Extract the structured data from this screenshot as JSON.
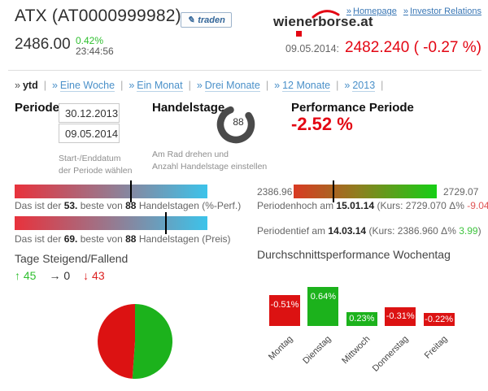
{
  "colors": {
    "brand_red": "#e30613",
    "green": "#2fbf2f",
    "bar_red": "#dc1212",
    "bar_green": "#1cb21c",
    "link_blue": "#4a90c9"
  },
  "icons": {
    "bullet": "»",
    "pen": "✎",
    "arrow_up": "↑",
    "arrow_right": "→",
    "arrow_down": "↓"
  },
  "header": {
    "title": "ATX (AT0000999982)",
    "traden_label": "traden",
    "logo_wiener": "wiener",
    "logo_borse": "borse.at",
    "links": [
      {
        "label": "Homepage"
      },
      {
        "label": "Investor Relations"
      }
    ],
    "price": "2486.00",
    "change_pct": "0.42%",
    "change_time": "23:44:56",
    "quote_date": "09.05.2014:",
    "quote_value": "2482.240 ( -0.27 %)"
  },
  "nav": {
    "separator": "|",
    "items": [
      "ytd",
      "Eine Woche",
      "Ein Monat",
      "Drei Monate",
      "12 Monate",
      "2013"
    ],
    "active": "ytd"
  },
  "periode": {
    "label": "Periode",
    "start_date": "30.12.2013",
    "end_date": "09.05.2014",
    "hint_line1": "Start-/Enddatum",
    "hint_line2": "der Periode wählen"
  },
  "handelstage": {
    "label": "Handelstage",
    "value": "88",
    "hint_line1": "Am Rad drehen und",
    "hint_line2": "Anzahl Handelstage einstellen"
  },
  "performance": {
    "label": "Performance Periode",
    "value": "-2.52 %"
  },
  "rank_bars": [
    {
      "prefix": "Das ist der",
      "rank": "53.",
      "mid": "beste von",
      "total": "88",
      "suffix": "Handelstagen (%-Perf.)",
      "marker_pct": 60.2
    },
    {
      "prefix": "Das ist der",
      "rank": "69.",
      "mid": "beste von",
      "total": "88",
      "suffix": "Handelstagen (Preis)",
      "marker_pct": 78.4
    }
  ],
  "range_bar": {
    "min_label": "2386.96",
    "max_label": "2729.07",
    "marker_pct": 27.9,
    "high": {
      "prefix": "Periodenhoch am",
      "date": "15.01.14",
      "mid": "(Kurs: 2729.070 Δ%",
      "delta": "-9.04",
      "suffix": ")"
    },
    "low": {
      "prefix": "Periodentief am",
      "date": "14.03.14",
      "mid": "(Kurs: 2386.960 Δ%",
      "delta": "3.99",
      "suffix": ")"
    }
  },
  "updown": {
    "title": "Tage Steigend/Fallend",
    "up": "45",
    "neutral": "0",
    "down": "43"
  },
  "weekday_title": "Durchschnittsperformance Wochentag",
  "chart_data": [
    {
      "type": "pie",
      "title": "Tage Steigend/Fallend",
      "labels": [
        "steigend",
        "fallend"
      ],
      "values": [
        45,
        43
      ],
      "colors": [
        "#1cb21c",
        "#dc1212"
      ]
    },
    {
      "type": "bar",
      "title": "Durchschnittsperformance Wochentag",
      "categories": [
        "Montag",
        "Dienstag",
        "Mittwoch",
        "Donnerstag",
        "Freitag"
      ],
      "values": [
        -0.51,
        0.64,
        0.23,
        -0.31,
        -0.22
      ],
      "labels": [
        "-0.51%",
        "0.64%",
        "0.23%",
        "-0.31%",
        "-0.22%"
      ],
      "ylabel": "",
      "xlabel": "",
      "colors": {
        "positive": "#1cb21c",
        "negative": "#dc1212"
      }
    }
  ]
}
